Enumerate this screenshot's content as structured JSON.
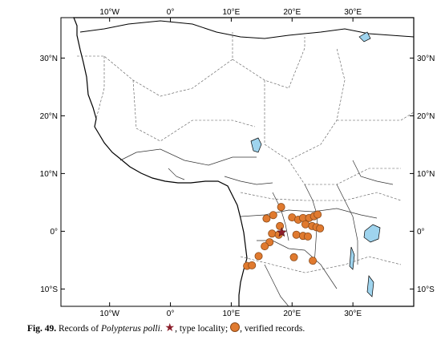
{
  "map": {
    "lon_range": [
      -18,
      40
    ],
    "lat_range": [
      -13,
      37
    ],
    "ticks_lon": [
      {
        "value": -10,
        "label": "10°W"
      },
      {
        "value": 0,
        "label": "0°"
      },
      {
        "value": 10,
        "label": "10°E"
      },
      {
        "value": 20,
        "label": "20°E"
      },
      {
        "value": 30,
        "label": "30°E"
      }
    ],
    "ticks_lat": [
      {
        "value": 30,
        "label": "30°N"
      },
      {
        "value": 20,
        "label": "20°N"
      },
      {
        "value": 10,
        "label": "10°N"
      },
      {
        "value": 0,
        "label": "0°"
      },
      {
        "value": -10,
        "label": "10°S"
      }
    ],
    "colors": {
      "land_outline": "#000000",
      "borders": "#555555",
      "rivers": "#333333",
      "lakes": "#9fd4ee",
      "record_fill": "#e07a2f",
      "record_stroke": "#8a4a1a",
      "type_locality": "#8b1e2b"
    },
    "type_locality": {
      "lon": 18.3,
      "lat": -0.2
    },
    "records": [
      {
        "lon": 15.8,
        "lat": 2.2
      },
      {
        "lon": 16.9,
        "lat": 2.8
      },
      {
        "lon": 18.2,
        "lat": 4.2
      },
      {
        "lon": 20.0,
        "lat": 2.4
      },
      {
        "lon": 21.0,
        "lat": 2.0
      },
      {
        "lon": 21.8,
        "lat": 2.3
      },
      {
        "lon": 22.8,
        "lat": 2.3
      },
      {
        "lon": 23.6,
        "lat": 2.6
      },
      {
        "lon": 24.2,
        "lat": 2.9
      },
      {
        "lon": 22.2,
        "lat": 1.2
      },
      {
        "lon": 23.3,
        "lat": 0.9
      },
      {
        "lon": 24.0,
        "lat": 0.7
      },
      {
        "lon": 24.6,
        "lat": 0.5
      },
      {
        "lon": 18.0,
        "lat": 0.9
      },
      {
        "lon": 16.7,
        "lat": -0.4
      },
      {
        "lon": 17.8,
        "lat": -0.6
      },
      {
        "lon": 20.7,
        "lat": -0.6
      },
      {
        "lon": 21.8,
        "lat": -0.8
      },
      {
        "lon": 22.6,
        "lat": -0.9
      },
      {
        "lon": 16.3,
        "lat": -1.9
      },
      {
        "lon": 15.5,
        "lat": -2.6
      },
      {
        "lon": 14.5,
        "lat": -4.3
      },
      {
        "lon": 12.6,
        "lat": -6.0
      },
      {
        "lon": 13.4,
        "lat": -5.9
      },
      {
        "lon": 20.3,
        "lat": -4.5
      },
      {
        "lon": 23.4,
        "lat": -5.1
      }
    ]
  },
  "caption": {
    "fig_label": "Fig. 49.",
    "text_before": " Records of ",
    "species": "Polypterus polli",
    "text_mid": ". ",
    "type_locality": ", type locality; ",
    "verified": ", verified records."
  }
}
